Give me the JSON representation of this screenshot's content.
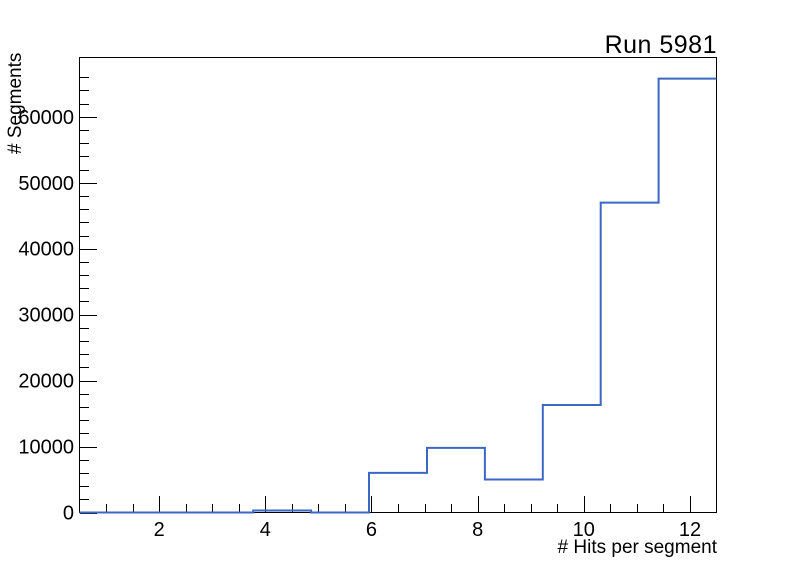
{
  "chart_data": {
    "type": "bar",
    "subtype": "step-histogram",
    "title": "Run 5981",
    "xlabel": "# Hits per segment",
    "ylabel": "# Segments",
    "x_range": [
      0.5,
      12.5
    ],
    "y_range": [
      0,
      69000
    ],
    "bin_edges": [
      0.5,
      1.5909,
      2.6818,
      3.7727,
      4.8636,
      5.9545,
      7.0455,
      8.1364,
      9.2273,
      10.3182,
      11.4091,
      12.5
    ],
    "values": [
      0,
      0,
      0,
      300,
      0,
      6000,
      9800,
      5000,
      16300,
      47000,
      65800
    ],
    "x_major_ticks": [
      2,
      4,
      6,
      8,
      10,
      12
    ],
    "x_tick_labels": [
      "2",
      "4",
      "6",
      "8",
      "10",
      "12"
    ],
    "x_minor_step": 0.5,
    "y_major_ticks": [
      0,
      10000,
      20000,
      30000,
      40000,
      50000,
      60000
    ],
    "y_tick_labels": [
      "0",
      "10000",
      "20000",
      "30000",
      "40000",
      "50000",
      "60000"
    ],
    "y_minor_step": 2000,
    "grid": "off",
    "legend": "none",
    "line_color": "#3b67c5",
    "axis_color": "#000000",
    "background_color": "#ffffff"
  }
}
